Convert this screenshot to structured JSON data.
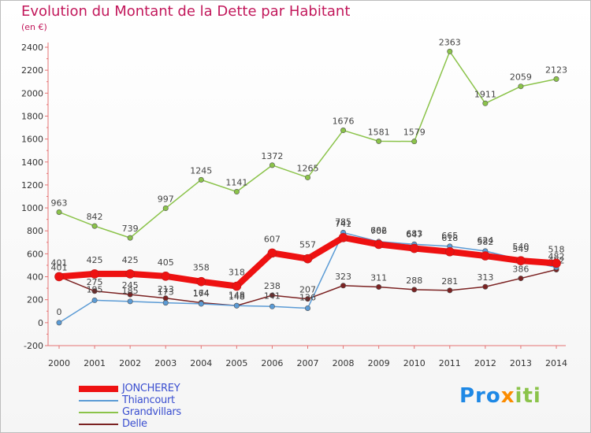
{
  "header": {
    "title": "Evolution du Montant de la Dette par Habitant",
    "subtitle": "(en €)"
  },
  "brand": {
    "part1": "Pro",
    "part2": "x",
    "part3": "iti"
  },
  "chart_data": {
    "type": "line",
    "x": [
      "2000",
      "2001",
      "2002",
      "2003",
      "2004",
      "2005",
      "2006",
      "2007",
      "2008",
      "2009",
      "2010",
      "2011",
      "2012",
      "2013",
      "2014"
    ],
    "ylim": [
      -200,
      2400
    ],
    "yticks": [
      -200,
      0,
      200,
      400,
      600,
      800,
      1000,
      1200,
      1400,
      1600,
      1800,
      2000,
      2200,
      2400
    ],
    "grid": false,
    "legend_position": "bottom-left",
    "series": [
      {
        "name": "Grandvillars",
        "color": "#8bc34a",
        "values": [
          963,
          842,
          739,
          997,
          1245,
          1141,
          1372,
          1265,
          1676,
          1581,
          1579,
          2363,
          1911,
          2059,
          2123
        ]
      },
      {
        "name": "Delle",
        "color": "#7b2222",
        "values": [
          401,
          275,
          245,
          213,
          174,
          148,
          238,
          207,
          323,
          311,
          288,
          281,
          313,
          386,
          462
        ]
      },
      {
        "name": "Thiancourt",
        "color": "#5b9bd5",
        "values": [
          0,
          195,
          185,
          173,
          164,
          148,
          141,
          126,
          785,
          706,
          683,
          665,
          624,
          549,
          482
        ]
      },
      {
        "name": "JONCHEREY",
        "color": "#ee1111",
        "values": [
          401,
          425,
          425,
          405,
          358,
          318,
          607,
          557,
          741,
          682,
          647,
          618,
          582,
          540,
          518
        ]
      }
    ],
    "legend_order": [
      "JONCHEREY",
      "Thiancourt",
      "Grandvillars",
      "Delle"
    ]
  }
}
